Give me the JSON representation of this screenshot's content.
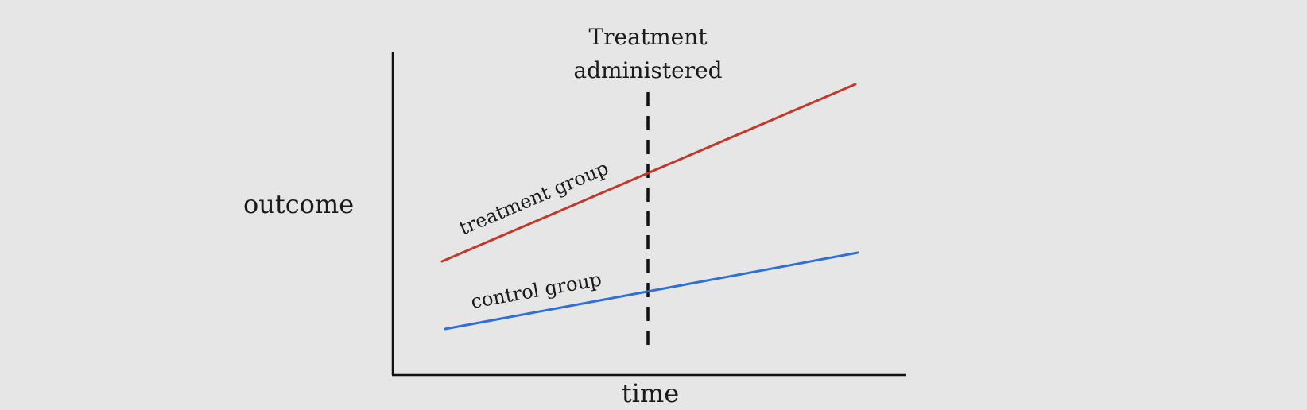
{
  "diagram": {
    "y_axis_label": "outcome",
    "x_axis_label": "time",
    "marker": {
      "label_line1": "Treatment",
      "label_line2": "administered"
    },
    "series": [
      {
        "name": "treatment group",
        "color": "#c0392b"
      },
      {
        "name": "control group",
        "color": "#2f6fd6"
      }
    ]
  }
}
